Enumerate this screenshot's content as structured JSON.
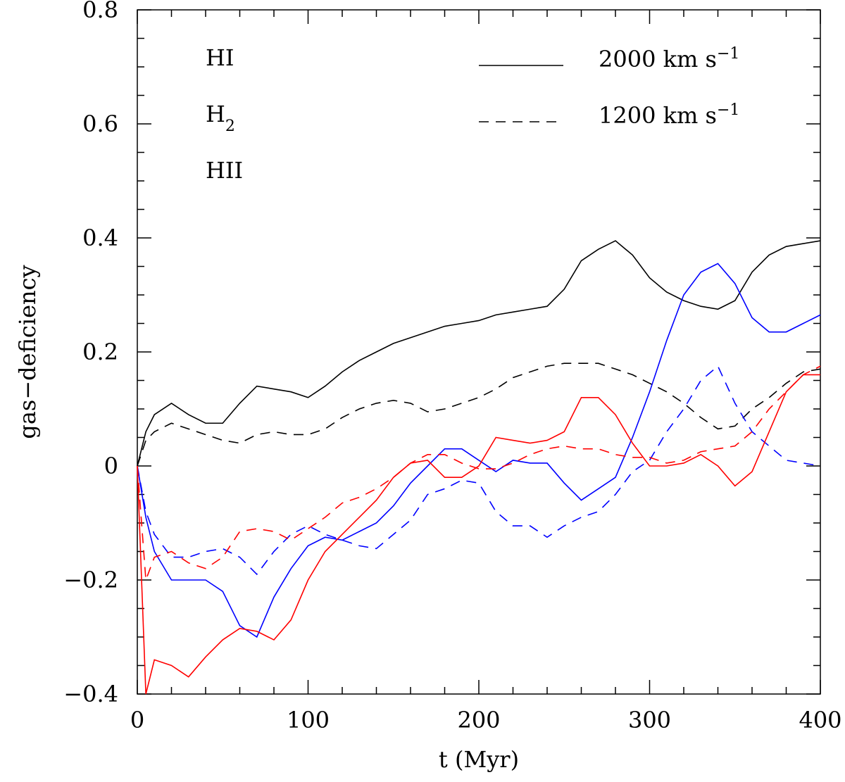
{
  "chart_data": {
    "type": "line",
    "xlabel": "t   (Myr)",
    "ylabel": "gas−deficiency",
    "xlim": [
      0,
      400
    ],
    "ylim": [
      -0.4,
      0.8
    ],
    "xticks": [
      0,
      100,
      200,
      300,
      400
    ],
    "yticks": [
      {
        "value": -0.4,
        "label": "−0.4"
      },
      {
        "value": -0.2,
        "label": "−0.2"
      },
      0,
      0.2,
      0.4,
      0.6,
      0.8
    ],
    "xminorticks": [
      20,
      40,
      60,
      80,
      120,
      140,
      160,
      180,
      220,
      240,
      260,
      280,
      320,
      340,
      360,
      380
    ],
    "yminorticks": [
      -0.35,
      -0.3,
      -0.25,
      -0.15,
      -0.1,
      -0.05,
      0.05,
      0.1,
      0.15,
      0.25,
      0.3,
      0.35,
      0.45,
      0.5,
      0.55,
      0.65,
      0.7,
      0.75
    ],
    "species": [
      {
        "label": "HI",
        "color": "#000000"
      },
      {
        "label": "H",
        "sub": "2",
        "color": "#0000ff"
      },
      {
        "label": "HII",
        "color": "#ff0000"
      }
    ],
    "styles": [
      {
        "label": "2000 km s",
        "sup": "−1",
        "dashed": false
      },
      {
        "label": "1200 km s",
        "sup": "−1",
        "dashed": true
      }
    ],
    "x": [
      0,
      5,
      10,
      20,
      30,
      40,
      50,
      60,
      70,
      80,
      90,
      100,
      110,
      120,
      130,
      140,
      150,
      160,
      170,
      180,
      190,
      200,
      210,
      220,
      230,
      240,
      250,
      260,
      270,
      280,
      290,
      300,
      310,
      320,
      330,
      340,
      350,
      360,
      370,
      380,
      390,
      400
    ],
    "series": [
      {
        "color": "#000000",
        "dashed": false,
        "values": [
          0,
          0.06,
          0.09,
          0.11,
          0.09,
          0.075,
          0.075,
          0.11,
          0.14,
          0.135,
          0.13,
          0.12,
          0.14,
          0.165,
          0.185,
          0.2,
          0.215,
          0.225,
          0.235,
          0.245,
          0.25,
          0.255,
          0.265,
          0.27,
          0.275,
          0.28,
          0.31,
          0.36,
          0.38,
          0.395,
          0.37,
          0.33,
          0.305,
          0.29,
          0.28,
          0.275,
          0.29,
          0.34,
          0.37,
          0.385,
          0.39,
          0.395
        ]
      },
      {
        "color": "#000000",
        "dashed": true,
        "values": [
          0,
          0.045,
          0.06,
          0.075,
          0.065,
          0.055,
          0.045,
          0.04,
          0.055,
          0.06,
          0.055,
          0.055,
          0.065,
          0.085,
          0.1,
          0.11,
          0.115,
          0.11,
          0.095,
          0.1,
          0.11,
          0.12,
          0.135,
          0.155,
          0.165,
          0.175,
          0.18,
          0.18,
          0.18,
          0.17,
          0.16,
          0.145,
          0.13,
          0.11,
          0.085,
          0.065,
          0.07,
          0.1,
          0.12,
          0.145,
          0.165,
          0.17
        ]
      },
      {
        "color": "#0000ff",
        "dashed": false,
        "values": [
          0,
          -0.09,
          -0.15,
          -0.2,
          -0.2,
          -0.2,
          -0.22,
          -0.28,
          -0.3,
          -0.23,
          -0.18,
          -0.14,
          -0.125,
          -0.13,
          -0.115,
          -0.1,
          -0.07,
          -0.03,
          0,
          0.03,
          0.03,
          0.01,
          -0.01,
          0.01,
          0.005,
          0.005,
          -0.03,
          -0.06,
          -0.04,
          -0.02,
          0.05,
          0.13,
          0.22,
          0.3,
          0.34,
          0.355,
          0.32,
          0.26,
          0.235,
          0.235,
          0.25,
          0.265
        ]
      },
      {
        "color": "#0000ff",
        "dashed": true,
        "values": [
          0,
          -0.08,
          -0.12,
          -0.16,
          -0.16,
          -0.15,
          -0.145,
          -0.16,
          -0.19,
          -0.15,
          -0.12,
          -0.105,
          -0.12,
          -0.13,
          -0.14,
          -0.145,
          -0.12,
          -0.095,
          -0.05,
          -0.04,
          -0.025,
          -0.03,
          -0.08,
          -0.105,
          -0.105,
          -0.125,
          -0.105,
          -0.09,
          -0.08,
          -0.05,
          -0.01,
          0.01,
          0.06,
          0.1,
          0.15,
          0.175,
          0.11,
          0.06,
          0.035,
          0.01,
          0.005,
          0
        ]
      },
      {
        "color": "#ff0000",
        "dashed": false,
        "values": [
          0,
          -0.4,
          -0.34,
          -0.35,
          -0.37,
          -0.335,
          -0.305,
          -0.285,
          -0.29,
          -0.305,
          -0.27,
          -0.2,
          -0.15,
          -0.12,
          -0.09,
          -0.06,
          -0.02,
          0.005,
          0.01,
          -0.02,
          -0.02,
          0,
          0.05,
          0.045,
          0.04,
          0.045,
          0.06,
          0.12,
          0.12,
          0.09,
          0.04,
          0,
          0,
          0.005,
          0.02,
          0,
          -0.035,
          -0.01,
          0.06,
          0.13,
          0.16,
          0.16
        ]
      },
      {
        "color": "#ff0000",
        "dashed": true,
        "values": [
          0,
          -0.2,
          -0.16,
          -0.15,
          -0.17,
          -0.18,
          -0.16,
          -0.115,
          -0.11,
          -0.115,
          -0.13,
          -0.11,
          -0.09,
          -0.065,
          -0.055,
          -0.04,
          -0.02,
          0.005,
          0.02,
          0.02,
          0.005,
          -0.005,
          -0.005,
          0.005,
          0.02,
          0.03,
          0.035,
          0.03,
          0.03,
          0.02,
          0.015,
          0.015,
          0.005,
          0.01,
          0.025,
          0.03,
          0.035,
          0.06,
          0.1,
          0.13,
          0.16,
          0.175
        ]
      }
    ]
  }
}
